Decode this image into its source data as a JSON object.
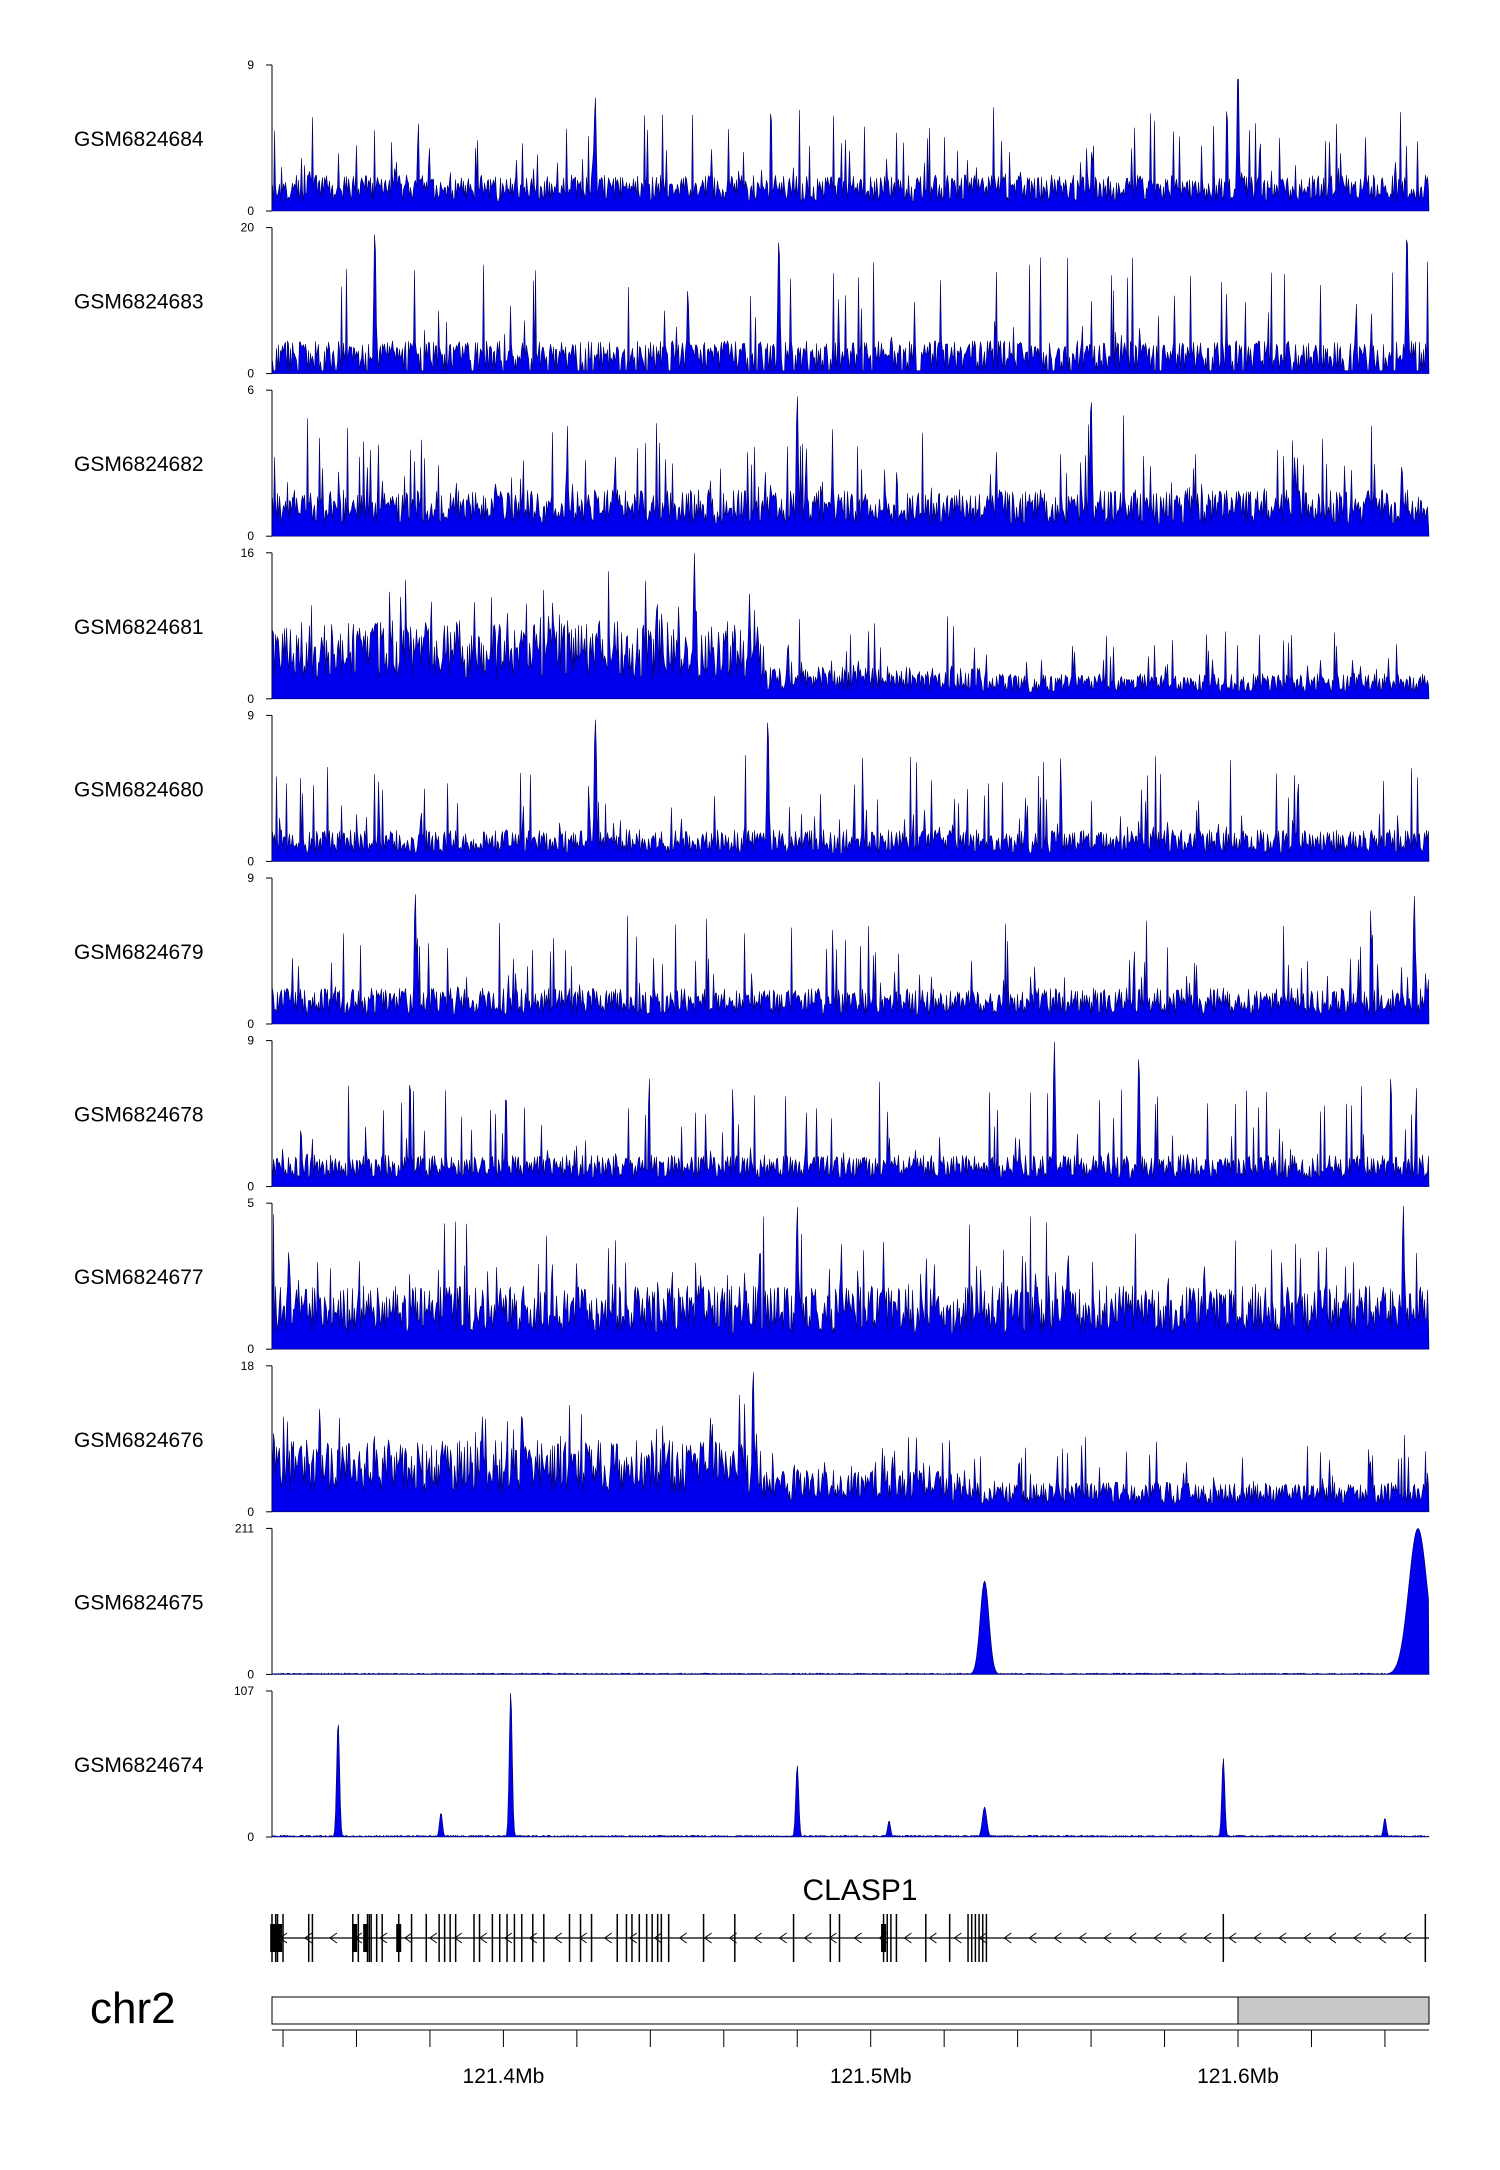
{
  "chart_data": {
    "type": "area",
    "chromosome": "chr2",
    "xlim": [
      121.337,
      121.652
    ],
    "x_unit": "Mb",
    "colors": {
      "signal": "#0000ee",
      "outline": "#000060",
      "axis": "#000000",
      "ideogram_band": "#c8c8c8"
    },
    "tracks": [
      {
        "name": "GSM6824684",
        "ymax": "9",
        "ymin": "0",
        "ylim": [
          0,
          9
        ],
        "profile": "noisy_spikes",
        "baseline": 0.17,
        "spikiness": 0.55,
        "peaks": [
          {
            "x": 121.6,
            "y": 9
          },
          {
            "x": 121.425,
            "y": 7.2
          }
        ]
      },
      {
        "name": "GSM6824683",
        "ymax": "20",
        "ymin": "0",
        "ylim": [
          0,
          20
        ],
        "profile": "sparse_spikes",
        "baseline": 0.15,
        "spikiness": 0.5,
        "peaks": [
          {
            "x": 121.365,
            "y": 20
          },
          {
            "x": 121.475,
            "y": 19
          },
          {
            "x": 121.646,
            "y": 20
          }
        ]
      },
      {
        "name": "GSM6824682",
        "ymax": "6",
        "ymin": "0",
        "ylim": [
          0,
          6
        ],
        "profile": "noisy_spikes",
        "baseline": 0.22,
        "spikiness": 0.55,
        "peaks": [
          {
            "x": 121.48,
            "y": 5.9
          },
          {
            "x": 121.56,
            "y": 5.9
          }
        ]
      },
      {
        "name": "GSM6824681",
        "ymax": "16",
        "ymin": "0",
        "ylim": [
          0,
          16
        ],
        "profile": "regional",
        "baseline": 0.3,
        "spikiness": 0.35,
        "peaks": [
          {
            "x": 121.452,
            "y": 16
          },
          {
            "x": 121.467,
            "y": 11.5
          }
        ],
        "regions": [
          {
            "from": 121.337,
            "to": 121.47,
            "level": 0.37
          },
          {
            "from": 121.47,
            "to": 121.53,
            "level": 0.15
          },
          {
            "from": 121.53,
            "to": 121.652,
            "level": 0.12
          }
        ]
      },
      {
        "name": "GSM6824680",
        "ymax": "9",
        "ymin": "0",
        "ylim": [
          0,
          9
        ],
        "profile": "noisy_spikes",
        "baseline": 0.15,
        "spikiness": 0.55,
        "peaks": [
          {
            "x": 121.425,
            "y": 9
          },
          {
            "x": 121.472,
            "y": 9
          }
        ]
      },
      {
        "name": "GSM6824679",
        "ymax": "9",
        "ymin": "0",
        "ylim": [
          0,
          9
        ],
        "profile": "noisy_spikes",
        "baseline": 0.17,
        "spikiness": 0.55,
        "peaks": [
          {
            "x": 121.376,
            "y": 8.2
          },
          {
            "x": 121.648,
            "y": 8.0
          }
        ]
      },
      {
        "name": "GSM6824678",
        "ymax": "9",
        "ymin": "0",
        "ylim": [
          0,
          9
        ],
        "profile": "noisy_spikes",
        "baseline": 0.15,
        "spikiness": 0.55,
        "peaks": [
          {
            "x": 121.55,
            "y": 9
          },
          {
            "x": 121.573,
            "y": 8.2
          }
        ]
      },
      {
        "name": "GSM6824677",
        "ymax": "5",
        "ymin": "0",
        "ylim": [
          0,
          5
        ],
        "profile": "noisy_spikes",
        "baseline": 0.3,
        "spikiness": 0.55,
        "peaks": [
          {
            "x": 121.645,
            "y": 5
          },
          {
            "x": 121.48,
            "y": 5
          }
        ]
      },
      {
        "name": "GSM6824676",
        "ymax": "18",
        "ymin": "0",
        "ylim": [
          0,
          18
        ],
        "profile": "regional",
        "baseline": 0.3,
        "spikiness": 0.35,
        "peaks": [
          {
            "x": 121.468,
            "y": 18
          },
          {
            "x": 121.35,
            "y": 13
          }
        ],
        "regions": [
          {
            "from": 121.337,
            "to": 121.47,
            "level": 0.34
          },
          {
            "from": 121.47,
            "to": 121.53,
            "level": 0.2
          },
          {
            "from": 121.53,
            "to": 121.652,
            "level": 0.14
          }
        ]
      },
      {
        "name": "GSM6824675",
        "ymax": "211",
        "ymin": "0",
        "ylim": [
          0,
          211
        ],
        "profile": "flat_peaks",
        "baseline": 0.006,
        "spikiness": 0.05,
        "peaks": [
          {
            "x": 121.531,
            "y": 135,
            "width": 0.0012
          },
          {
            "x": 121.649,
            "y": 211,
            "width": 0.0025
          }
        ]
      },
      {
        "name": "GSM6824674",
        "ymax": "107",
        "ymin": "0",
        "ylim": [
          0,
          107
        ],
        "profile": "flat_peaks",
        "baseline": 0.008,
        "spikiness": 0.05,
        "peaks": [
          {
            "x": 121.355,
            "y": 85,
            "width": 0.0004
          },
          {
            "x": 121.383,
            "y": 18,
            "width": 0.0004
          },
          {
            "x": 121.402,
            "y": 107,
            "width": 0.0004
          },
          {
            "x": 121.48,
            "y": 53,
            "width": 0.0004
          },
          {
            "x": 121.505,
            "y": 12,
            "width": 0.0004
          },
          {
            "x": 121.531,
            "y": 22,
            "width": 0.0006
          },
          {
            "x": 121.596,
            "y": 58,
            "width": 0.0004
          },
          {
            "x": 121.64,
            "y": 14,
            "width": 0.0004
          }
        ]
      }
    ],
    "gene": {
      "name": "CLASP1",
      "strand": "-",
      "from": 121.337,
      "to": 121.652,
      "exons": [
        121.337,
        121.338,
        121.3385,
        121.34,
        121.347,
        121.348,
        121.359,
        121.3605,
        121.363,
        121.3635,
        121.364,
        121.3655,
        121.367,
        121.3715,
        121.375,
        121.379,
        121.3825,
        121.384,
        121.3855,
        121.387,
        121.392,
        121.3935,
        121.397,
        121.399,
        121.401,
        121.403,
        121.405,
        121.408,
        121.411,
        121.418,
        121.421,
        121.424,
        121.431,
        121.4335,
        121.435,
        121.437,
        121.439,
        121.4405,
        121.442,
        121.443,
        121.445,
        121.4545,
        121.463,
        121.479,
        121.489,
        121.4915,
        121.5035,
        121.5045,
        121.5055,
        121.507,
        121.515,
        121.5215,
        121.5265,
        121.5275,
        121.5285,
        121.5295,
        121.5305,
        121.5315,
        121.596,
        121.651
      ],
      "thick_exons": [
        121.3365,
        121.3595,
        121.3625,
        121.3715,
        121.5035
      ]
    },
    "axis": {
      "ticks": [
        121.34,
        121.36,
        121.38,
        121.4,
        121.42,
        121.44,
        121.46,
        121.48,
        121.5,
        121.52,
        121.54,
        121.56,
        121.58,
        121.6,
        121.62,
        121.64
      ],
      "labels": [
        {
          "value": 121.4,
          "text": "121.4Mb"
        },
        {
          "value": 121.5,
          "text": "121.5Mb"
        },
        {
          "value": 121.6,
          "text": "121.6Mb"
        }
      ]
    },
    "ideogram": {
      "band_from": 121.6,
      "band_to": 121.652
    }
  }
}
